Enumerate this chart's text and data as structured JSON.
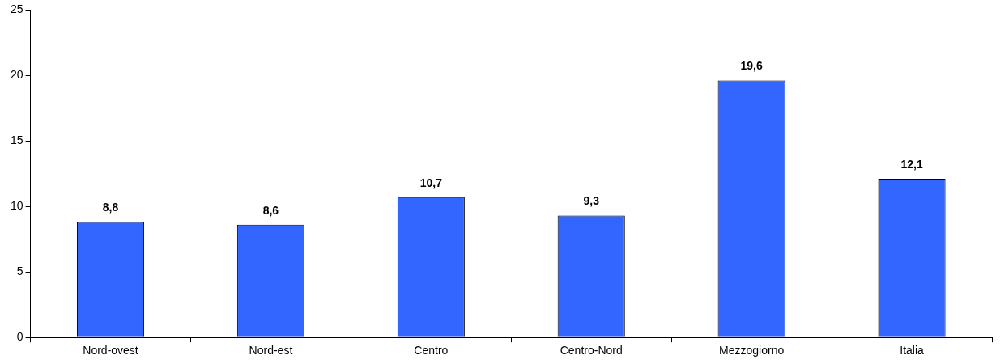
{
  "chart_data": {
    "type": "bar",
    "categories": [
      "Nord-ovest",
      "Nord-est",
      "Centro",
      "Centro-Nord",
      "Mezzogiorno",
      "Italia"
    ],
    "values": [
      8.8,
      8.6,
      10.7,
      9.3,
      19.6,
      12.1
    ],
    "value_labels": [
      "8,8",
      "8,6",
      "10,7",
      "9,3",
      "19,6",
      "12,1"
    ],
    "color": "#3366ff",
    "ylim": [
      0,
      25
    ],
    "yticks": [
      0,
      5,
      10,
      15,
      20,
      25
    ],
    "grid": false,
    "legend": false
  }
}
